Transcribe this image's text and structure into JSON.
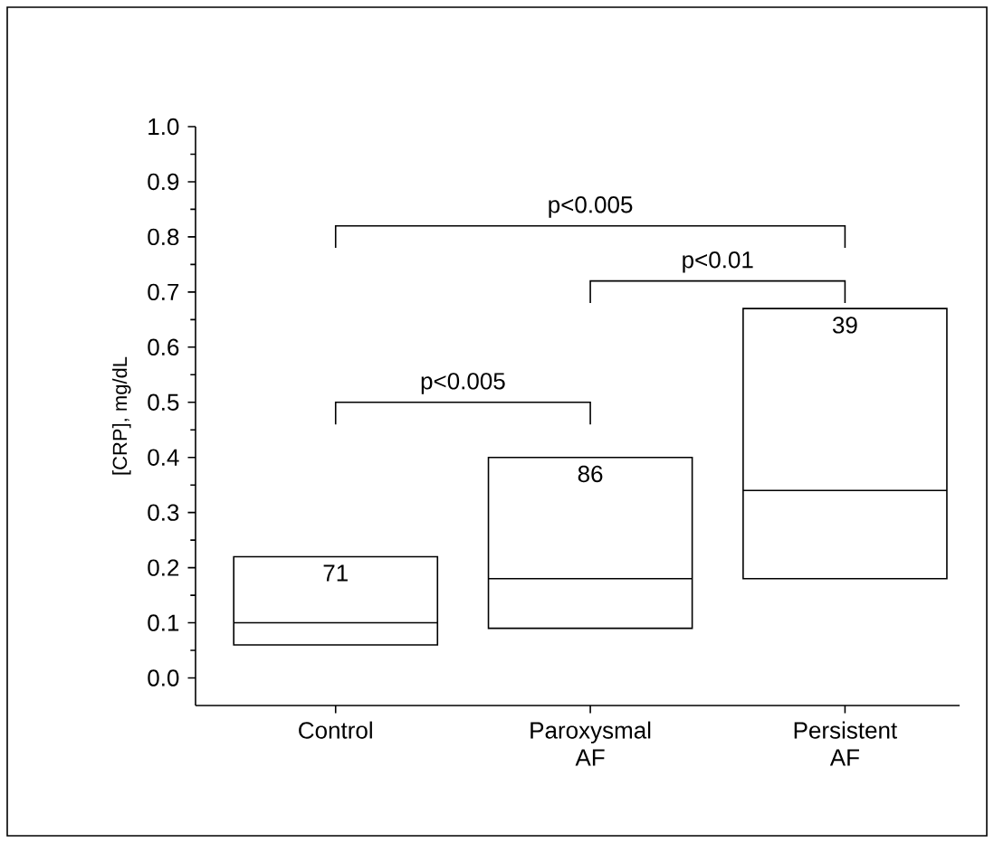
{
  "chart_data": {
    "type": "box",
    "ylabel": "[CRP], mg/dL",
    "categories": [
      "Control",
      "Paroxysmal AF",
      "Persistent AF"
    ],
    "boxes": [
      {
        "low": 0.06,
        "q1": 0.06,
        "median": 0.1,
        "q3": 0.22,
        "high": 0.22
      },
      {
        "low": 0.09,
        "q1": 0.09,
        "median": 0.18,
        "q3": 0.4,
        "high": 0.4
      },
      {
        "low": 0.18,
        "q1": 0.18,
        "median": 0.34,
        "q3": 0.67,
        "high": 0.67
      }
    ],
    "ylim": [
      -0.05,
      1.0
    ],
    "yticks": [
      {
        "value": 0,
        "label": "0.0"
      },
      {
        "value": 0.1,
        "label": "0.1"
      },
      {
        "value": 0.2,
        "label": "0.2"
      },
      {
        "value": 0.3,
        "label": "0.3"
      },
      {
        "value": 0.4,
        "label": "0.4"
      },
      {
        "value": 0.5,
        "label": "0.5"
      },
      {
        "value": 0.6,
        "label": "0.6"
      },
      {
        "value": 0.7,
        "label": "0.7"
      },
      {
        "value": 0.8,
        "label": "0.8"
      },
      {
        "value": 0.9,
        "label": "0.9"
      },
      {
        "value": 1.0,
        "label": "1.0"
      }
    ],
    "annotations": [
      "71",
      "86",
      "39",
      "p<0.005",
      "p<0.01",
      "p<0.005"
    ]
  }
}
